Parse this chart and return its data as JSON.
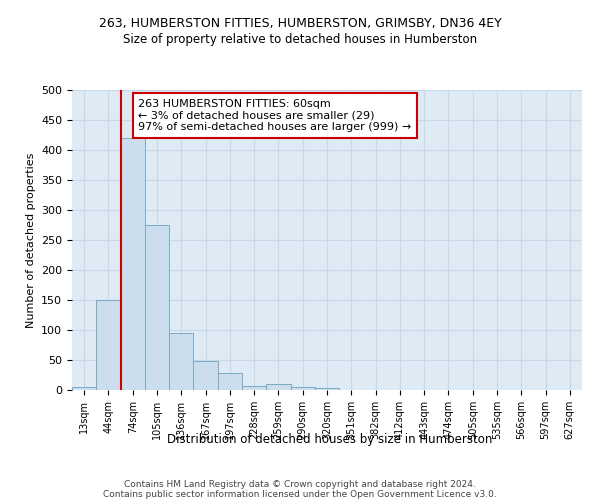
{
  "title_line1": "263, HUMBERSTON FITTIES, HUMBERSTON, GRIMSBY, DN36 4EY",
  "title_line2": "Size of property relative to detached houses in Humberston",
  "xlabel": "Distribution of detached houses by size in Humberston",
  "ylabel": "Number of detached properties",
  "footnote": "Contains HM Land Registry data © Crown copyright and database right 2024.\nContains public sector information licensed under the Open Government Licence v3.0.",
  "bin_labels": [
    "13sqm",
    "44sqm",
    "74sqm",
    "105sqm",
    "136sqm",
    "167sqm",
    "197sqm",
    "228sqm",
    "259sqm",
    "290sqm",
    "320sqm",
    "351sqm",
    "382sqm",
    "412sqm",
    "443sqm",
    "474sqm",
    "505sqm",
    "535sqm",
    "566sqm",
    "597sqm",
    "627sqm"
  ],
  "bar_values": [
    5,
    150,
    420,
    275,
    95,
    48,
    28,
    6,
    10,
    5,
    3,
    0,
    0,
    0,
    0,
    0,
    0,
    0,
    0,
    0,
    0
  ],
  "bar_color": "#ccdded",
  "bar_edge_color": "#7aaac4",
  "vline_color": "#cc0000",
  "annotation_text": "263 HUMBERSTON FITTIES: 60sqm\n← 3% of detached houses are smaller (29)\n97% of semi-detached houses are larger (999) →",
  "annotation_box_color": "#ffffff",
  "annotation_box_edge_color": "#cc0000",
  "ylim": [
    0,
    500
  ],
  "yticks": [
    0,
    50,
    100,
    150,
    200,
    250,
    300,
    350,
    400,
    450,
    500
  ],
  "grid_color": "#c8d8e8",
  "background_color": "#deeaf4"
}
